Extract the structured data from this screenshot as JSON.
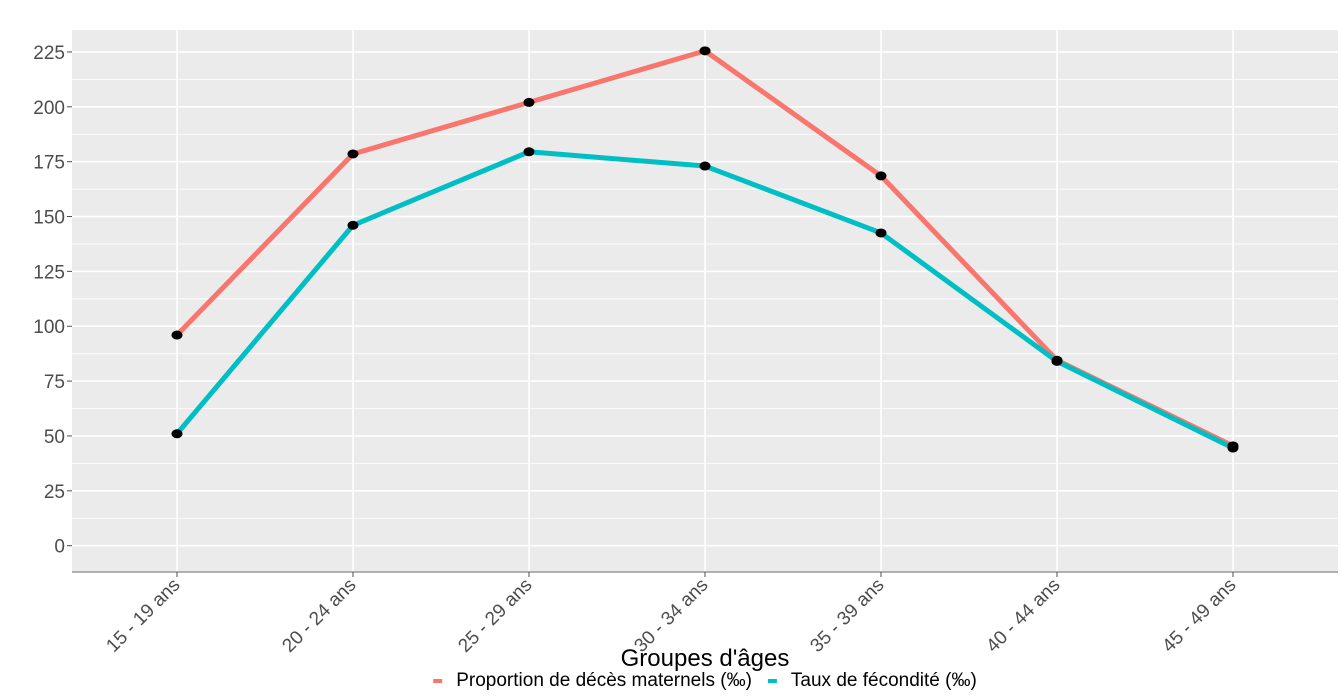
{
  "chart_data": {
    "type": "line",
    "title": "",
    "xlabel": "Groupes d'âges",
    "ylabel": "",
    "categories": [
      "15 - 19 ans",
      "20 - 24 ans",
      "25 - 29 ans",
      "30 - 34 ans",
      "35 - 39 ans",
      "40 - 44 ans",
      "45 - 49 ans"
    ],
    "yticks": [
      0,
      25,
      50,
      75,
      100,
      125,
      150,
      175,
      200,
      225
    ],
    "ylim": [
      -12,
      235
    ],
    "grid": true,
    "legend_position": "bottom",
    "series": [
      {
        "name": "Proportion de décès maternels (‰)",
        "color": "#f8766d",
        "values": [
          96,
          178.5,
          202,
          225.5,
          168.5,
          84.5,
          45.5
        ]
      },
      {
        "name": "Taux de fécondité (‰)",
        "color": "#00bfc4",
        "values": [
          51,
          146,
          179.5,
          173,
          142.5,
          84,
          44.5
        ]
      }
    ],
    "marker_color": "#000000",
    "panel_background": "#ebebeb",
    "grid_color": "#ffffff"
  }
}
